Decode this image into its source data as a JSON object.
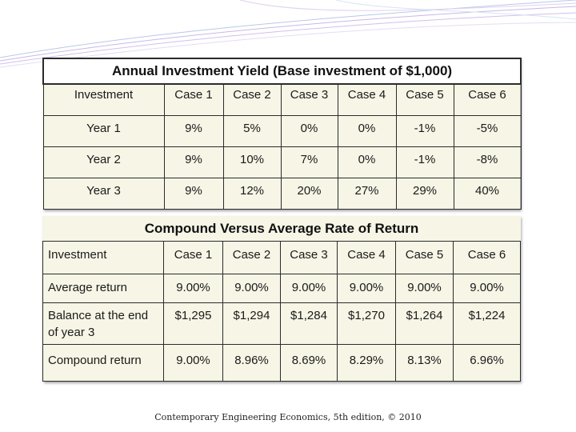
{
  "table1": {
    "title": "Annual Investment Yield (Base investment of $1,000)",
    "headers": [
      "Investment",
      "Case 1",
      "Case 2",
      "Case 3",
      "Case 4",
      "Case 5",
      "Case 6"
    ],
    "rows": [
      [
        "Year 1",
        "9%",
        "5%",
        "0%",
        "0%",
        "-1%",
        "-5%"
      ],
      [
        "Year 2",
        "9%",
        "10%",
        "7%",
        "0%",
        "-1%",
        "-8%"
      ],
      [
        "Year 3",
        "9%",
        "12%",
        "20%",
        "27%",
        "29%",
        "40%"
      ]
    ]
  },
  "table2": {
    "title": "Compound Versus Average Rate of Return",
    "headers": [
      "Investment",
      "Case 1",
      "Case 2",
      "Case 3",
      "Case 4",
      "Case 5",
      "Case 6"
    ],
    "rows": [
      [
        "Average return",
        "9.00%",
        "9.00%",
        "9.00%",
        "9.00%",
        "9.00%",
        "9.00%"
      ],
      [
        "Balance at the end of year 3",
        "$1,295",
        "$1,294",
        "$1,284",
        "$1,270",
        "$1,264",
        "$1,224"
      ],
      [
        "Compound return",
        "9.00%",
        "8.96%",
        "8.69%",
        "8.29%",
        "8.13%",
        "6.96%"
      ]
    ]
  },
  "footer": "Contemporary Engineering Economics, 5th edition, © 2010",
  "colors": {
    "table_bg": "#f6f5e6",
    "border": "#2b2b2b",
    "decoration": "#c8b8e8"
  }
}
